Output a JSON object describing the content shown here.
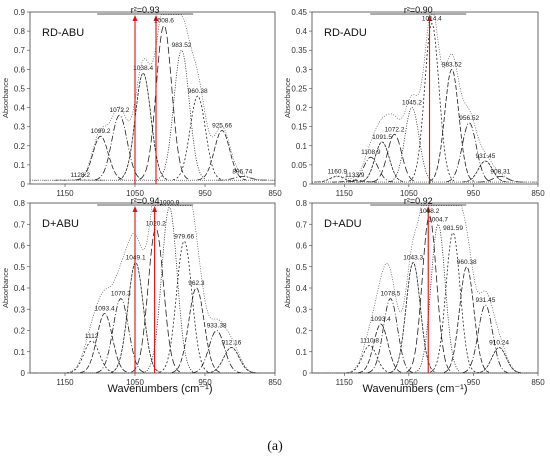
{
  "figure": {
    "caption": "(a)",
    "x_axis_label_left": "Wavenumbers (cm⁻¹)",
    "x_axis_label_right": "Wavenumbers (cm⁻¹)"
  },
  "chart_data": [
    {
      "type": "line",
      "title": "RD-ABU",
      "r2": "r²=0.93",
      "ylabel": "Absorbance",
      "xlim": [
        1200,
        850
      ],
      "ylim": [
        0,
        0.9
      ],
      "xticks": [
        "1150",
        "1050",
        "950",
        "850"
      ],
      "yticks": [
        "0",
        "0.1",
        "0.2",
        "0.3",
        "0.4",
        "0.5",
        "0.6",
        "0.7",
        "0.8",
        "0.9"
      ],
      "baseline": 0.02,
      "red_lines": [
        1050,
        1020
      ],
      "peaks": [
        {
          "label": "1128.2",
          "x": 1128.2,
          "y": 0.02
        },
        {
          "label": "1099.2",
          "x": 1099.2,
          "y": 0.25
        },
        {
          "label": "1072.2",
          "x": 1072.2,
          "y": 0.36
        },
        {
          "label": "1038.4",
          "x": 1038.4,
          "y": 0.58
        },
        {
          "label": "1008.6",
          "x": 1008.6,
          "y": 0.83
        },
        {
          "label": "983.52",
          "x": 983.52,
          "y": 0.7
        },
        {
          "label": "960.38",
          "x": 960.38,
          "y": 0.46
        },
        {
          "label": "925.66",
          "x": 925.66,
          "y": 0.28
        },
        {
          "label": "896.74",
          "x": 896.74,
          "y": 0.04
        }
      ]
    },
    {
      "type": "line",
      "title": "RD-ADU",
      "r2": "r²=0.90",
      "ylabel": "Absorbance",
      "xlim": [
        1200,
        850
      ],
      "ylim": [
        0,
        0.45
      ],
      "xticks": [
        "1150",
        "1050",
        "950",
        "850"
      ],
      "yticks": [
        "0",
        "0.05",
        "0.1",
        "0.15",
        "0.2",
        "0.25",
        "0.3",
        "0.35",
        "0.4",
        "0.45"
      ],
      "baseline": 0.005,
      "red_lines": [
        1018
      ],
      "peaks": [
        {
          "label": "1160.9",
          "x": 1160.9,
          "y": 0.02
        },
        {
          "label": "1133.9",
          "x": 1133.9,
          "y": 0.01
        },
        {
          "label": "1108.9",
          "x": 1108.9,
          "y": 0.07
        },
        {
          "label": "1091.5",
          "x": 1091.5,
          "y": 0.11
        },
        {
          "label": "1072.2",
          "x": 1072.2,
          "y": 0.13
        },
        {
          "label": "1045.2",
          "x": 1045.2,
          "y": 0.2
        },
        {
          "label": "1014.4",
          "x": 1014.4,
          "y": 0.42
        },
        {
          "label": "983.52",
          "x": 983.52,
          "y": 0.3
        },
        {
          "label": "956.52",
          "x": 956.52,
          "y": 0.16
        },
        {
          "label": "931.45",
          "x": 931.45,
          "y": 0.06
        },
        {
          "label": "908.31",
          "x": 908.31,
          "y": 0.02
        }
      ]
    },
    {
      "type": "line",
      "title": "D+ABU",
      "r2": "r²=0.94",
      "ylabel": "Absorbance",
      "xlim": [
        1200,
        850
      ],
      "ylim": [
        0,
        0.8
      ],
      "xticks": [
        "1150",
        "1050",
        "950",
        "850"
      ],
      "yticks": [
        "0",
        "0.1",
        "0.2",
        "0.3",
        "0.4",
        "0.5",
        "0.6",
        "0.7",
        "0.8"
      ],
      "baseline": 0.0,
      "red_lines": [
        1050,
        1022
      ],
      "peaks": [
        {
          "label": "1112",
          "x": 1112,
          "y": 0.15
        },
        {
          "label": "1093.4",
          "x": 1093.4,
          "y": 0.28
        },
        {
          "label": "1070.3",
          "x": 1070.3,
          "y": 0.35
        },
        {
          "label": "1049.1",
          "x": 1049.1,
          "y": 0.52
        },
        {
          "label": "1020.2",
          "x": 1020.2,
          "y": 0.68
        },
        {
          "label": "1000.9",
          "x": 1000.9,
          "y": 0.78
        },
        {
          "label": "979.66",
          "x": 979.66,
          "y": 0.62
        },
        {
          "label": "962.3",
          "x": 962.3,
          "y": 0.4
        },
        {
          "label": "933.38",
          "x": 933.38,
          "y": 0.2
        },
        {
          "label": "912.16",
          "x": 912.16,
          "y": 0.12
        }
      ]
    },
    {
      "type": "line",
      "title": "D+ADU",
      "r2": "r²=0.92",
      "ylabel": "Absorbance",
      "xlim": [
        1200,
        850
      ],
      "ylim": [
        0,
        0.8
      ],
      "xticks": [
        "1150",
        "1050",
        "950",
        "850"
      ],
      "yticks": [
        "0",
        "0.1",
        "0.2",
        "0.3",
        "0.4",
        "0.5",
        "0.6",
        "0.7",
        "0.8"
      ],
      "baseline": 0.0,
      "red_lines": [
        1020
      ],
      "peaks": [
        {
          "label": "1110.8",
          "x": 1110.8,
          "y": 0.13
        },
        {
          "label": "1093.4",
          "x": 1093.4,
          "y": 0.23
        },
        {
          "label": "1078.5",
          "x": 1078.5,
          "y": 0.35
        },
        {
          "label": "1043.3",
          "x": 1043.3,
          "y": 0.52
        },
        {
          "label": "1018.2",
          "x": 1018.2,
          "y": 0.74
        },
        {
          "label": "1004.7",
          "x": 1004.7,
          "y": 0.7
        },
        {
          "label": "981.59",
          "x": 981.59,
          "y": 0.66
        },
        {
          "label": "960.38",
          "x": 960.38,
          "y": 0.5
        },
        {
          "label": "931.45",
          "x": 931.45,
          "y": 0.32
        },
        {
          "label": "910.24",
          "x": 910.24,
          "y": 0.12
        }
      ]
    }
  ]
}
